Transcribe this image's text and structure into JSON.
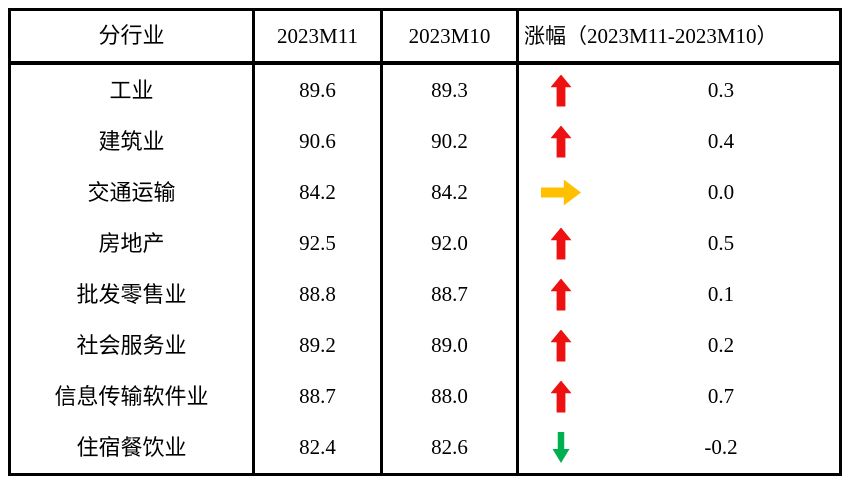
{
  "chart_data": {
    "type": "table",
    "columns": [
      "分行业",
      "2023M11",
      "2023M10",
      "涨幅（2023M11-2023M10）"
    ],
    "rows": [
      [
        "工业",
        89.6,
        89.3,
        0.3
      ],
      [
        "建筑业",
        90.6,
        90.2,
        0.4
      ],
      [
        "交通运输",
        84.2,
        84.2,
        0.0
      ],
      [
        "房地产",
        92.5,
        92.0,
        0.5
      ],
      [
        "批发零售业",
        88.8,
        88.7,
        0.1
      ],
      [
        "社会服务业",
        89.2,
        89.0,
        0.2
      ],
      [
        "信息传输软件业",
        88.7,
        88.0,
        0.7
      ],
      [
        "住宿餐饮业",
        82.4,
        82.6,
        -0.2
      ]
    ],
    "trend_by_row": [
      "up",
      "up",
      "flat",
      "up",
      "up",
      "up",
      "up",
      "down"
    ],
    "legend_position": "none",
    "grid": "outer-border-and-column-lines-only"
  },
  "table": {
    "headers": {
      "industry": "分行业",
      "m11": "2023M11",
      "m10": "2023M10",
      "change": "涨幅（2023M11-2023M10）"
    },
    "rows": [
      {
        "industry": "工业",
        "m11": "89.6",
        "m10": "89.3",
        "trend": "up",
        "delta": "0.3"
      },
      {
        "industry": "建筑业",
        "m11": "90.6",
        "m10": "90.2",
        "trend": "up",
        "delta": "0.4"
      },
      {
        "industry": "交通运输",
        "m11": "84.2",
        "m10": "84.2",
        "trend": "flat",
        "delta": "0.0"
      },
      {
        "industry": "房地产",
        "m11": "92.5",
        "m10": "92.0",
        "trend": "up",
        "delta": "0.5"
      },
      {
        "industry": "批发零售业",
        "m11": "88.8",
        "m10": "88.7",
        "trend": "up",
        "delta": "0.1"
      },
      {
        "industry": "社会服务业",
        "m11": "89.2",
        "m10": "89.0",
        "trend": "up",
        "delta": "0.2"
      },
      {
        "industry": "信息传输软件业",
        "m11": "88.7",
        "m10": "88.0",
        "trend": "up",
        "delta": "0.7"
      },
      {
        "industry": "住宿餐饮业",
        "m11": "82.4",
        "m10": "82.6",
        "trend": "down",
        "delta": "-0.2"
      }
    ],
    "colors": {
      "up": "#ee1111",
      "flat": "#ffc000",
      "down": "#00b050",
      "border": "#000000",
      "text": "#000000"
    },
    "icon_names": {
      "up": "up-arrow-icon",
      "flat": "right-arrow-icon",
      "down": "down-arrow-icon"
    }
  }
}
